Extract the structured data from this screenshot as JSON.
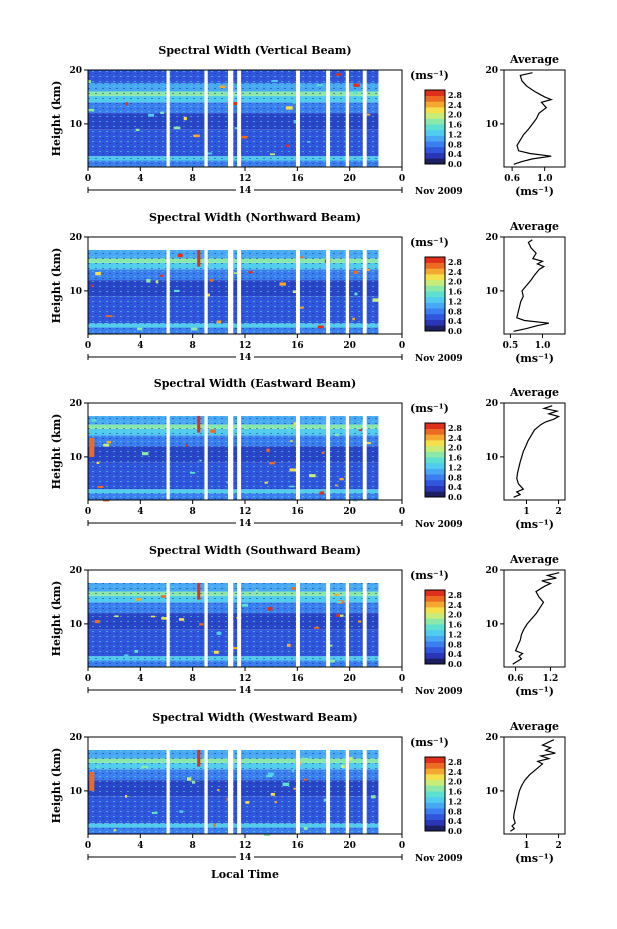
{
  "xlabel": "Local Time",
  "date_label": "Nov 2009",
  "day_label": "14",
  "colorbar": {
    "unit": "(ms⁻¹)",
    "ticks": [
      "0.0",
      "0.4",
      "0.8",
      "1.2",
      "1.6",
      "2.0",
      "2.4",
      "2.8"
    ],
    "range": [
      0.0,
      3.0
    ],
    "colors": [
      "#1c2060",
      "#2a36b8",
      "#2f56dc",
      "#3a7ef0",
      "#48a8f4",
      "#52ccee",
      "#5ee0d0",
      "#8ce8a8",
      "#c8ec78",
      "#f4e04a",
      "#f4a830",
      "#ec6a22",
      "#e0301c"
    ]
  },
  "chart_data": [
    {
      "type": "heatmap",
      "title": "Spectral Width (Vertical Beam)",
      "ylabel": "Height (km)",
      "xlim": [
        0,
        24
      ],
      "ylim": [
        2,
        20
      ],
      "xticks": [
        "0",
        "4",
        "8",
        "12",
        "16",
        "20",
        "0"
      ],
      "yticks": [
        "20",
        "10"
      ],
      "gaps": [
        [
          6.0,
          6.25
        ],
        [
          8.9,
          9.15
        ],
        [
          10.7,
          11.1
        ],
        [
          11.4,
          11.7
        ],
        [
          15.9,
          16.2
        ],
        [
          18.2,
          18.5
        ],
        [
          19.7,
          19.95
        ],
        [
          21.0,
          21.3
        ],
        [
          22.2,
          24.0
        ]
      ],
      "profile": {
        "title": "Average",
        "ylabel": "",
        "xlabel": "(ms⁻¹)",
        "xticks": [
          "0.6",
          "1.0"
        ],
        "xlim": [
          0.5,
          1.25
        ],
        "ylim": [
          2,
          20
        ],
        "yticks": [
          "20",
          "10"
        ],
        "height": [
          2.5,
          3,
          3.5,
          4,
          4.5,
          5,
          6,
          7,
          8,
          9,
          10,
          11,
          12,
          13,
          14,
          14.5,
          15,
          15.5,
          16,
          17,
          18,
          19,
          19.5
        ],
        "width": [
          0.62,
          0.72,
          0.85,
          1.08,
          0.82,
          0.68,
          0.66,
          0.7,
          0.74,
          0.8,
          0.85,
          0.9,
          0.93,
          1.02,
          0.96,
          1.08,
          1.0,
          0.94,
          0.88,
          0.78,
          0.72,
          0.7,
          0.85
        ]
      }
    },
    {
      "type": "heatmap",
      "title": "Spectral Width (Northward Beam)",
      "ylabel": "Height (km)",
      "xlim": [
        0,
        24
      ],
      "ylim": [
        2,
        20
      ],
      "xticks": [
        "0",
        "4",
        "8",
        "12",
        "16",
        "20",
        "0"
      ],
      "yticks": [
        "20",
        "10"
      ],
      "gaps": [
        [
          6.0,
          6.25
        ],
        [
          8.9,
          9.15
        ],
        [
          10.7,
          11.1
        ],
        [
          11.4,
          11.7
        ],
        [
          15.9,
          16.2
        ],
        [
          18.2,
          18.5
        ],
        [
          19.7,
          19.95
        ],
        [
          21.0,
          21.3
        ],
        [
          22.2,
          24.0
        ]
      ],
      "profile": {
        "title": "Average",
        "ylabel": "",
        "xlabel": "(ms⁻¹)",
        "xticks": [
          "0.5",
          "1.0"
        ],
        "xlim": [
          0.4,
          1.35
        ],
        "ylim": [
          2,
          20
        ],
        "yticks": [
          "20",
          "10"
        ],
        "height": [
          2.5,
          3,
          3.5,
          4,
          4.5,
          5,
          6,
          7,
          8,
          9,
          10,
          11,
          12,
          13,
          14,
          14.5,
          15,
          15.5,
          16,
          17,
          18,
          19,
          19.5
        ],
        "width": [
          0.55,
          0.75,
          0.9,
          1.1,
          0.72,
          0.6,
          0.62,
          0.64,
          0.66,
          0.7,
          0.68,
          0.75,
          0.82,
          0.88,
          0.95,
          1.02,
          0.92,
          1.0,
          0.85,
          0.9,
          0.82,
          0.78,
          0.84
        ]
      }
    },
    {
      "type": "heatmap",
      "title": "Spectral Width (Eastward Beam)",
      "ylabel": "Height (km)",
      "xlim": [
        0,
        24
      ],
      "ylim": [
        2,
        20
      ],
      "xticks": [
        "0",
        "4",
        "8",
        "12",
        "16",
        "20",
        "0"
      ],
      "yticks": [
        "20",
        "10"
      ],
      "gaps": [
        [
          6.0,
          6.25
        ],
        [
          8.9,
          9.15
        ],
        [
          10.7,
          11.1
        ],
        [
          11.4,
          11.7
        ],
        [
          15.9,
          16.2
        ],
        [
          18.2,
          18.5
        ],
        [
          19.7,
          19.95
        ],
        [
          21.0,
          21.3
        ],
        [
          22.2,
          24.0
        ]
      ],
      "profile": {
        "title": "Average",
        "ylabel": "",
        "xlabel": "(ms⁻¹)",
        "xticks": [
          "1",
          "2"
        ],
        "xlim": [
          0.3,
          2.2
        ],
        "ylim": [
          2,
          20
        ],
        "yticks": [
          "20",
          "10"
        ],
        "height": [
          2.5,
          3,
          3.5,
          4,
          5,
          6,
          7,
          8,
          9,
          10,
          11,
          12,
          13,
          14,
          15,
          16,
          16.5,
          17,
          17.5,
          18,
          18.5,
          19,
          19.5
        ],
        "width": [
          0.6,
          0.8,
          0.7,
          0.9,
          0.75,
          0.7,
          0.72,
          0.76,
          0.8,
          0.85,
          0.9,
          0.98,
          1.05,
          1.15,
          1.25,
          1.45,
          1.6,
          1.85,
          2.0,
          1.7,
          1.95,
          1.55,
          1.8
        ]
      }
    },
    {
      "type": "heatmap",
      "title": "Spectral Width (Southward Beam)",
      "ylabel": "Height (km)",
      "xlim": [
        0,
        24
      ],
      "ylim": [
        2,
        20
      ],
      "xticks": [
        "0",
        "4",
        "8",
        "12",
        "16",
        "20",
        "0"
      ],
      "yticks": [
        "20",
        "10"
      ],
      "gaps": [
        [
          6.0,
          6.25
        ],
        [
          8.9,
          9.15
        ],
        [
          10.7,
          11.1
        ],
        [
          11.4,
          11.7
        ],
        [
          15.9,
          16.2
        ],
        [
          18.2,
          18.5
        ],
        [
          19.7,
          19.95
        ],
        [
          21.0,
          21.3
        ],
        [
          22.2,
          24.0
        ]
      ],
      "profile": {
        "title": "Average",
        "ylabel": "",
        "xlabel": "(ms⁻¹)",
        "xticks": [
          "0.6",
          "1.2"
        ],
        "xlim": [
          0.4,
          1.45
        ],
        "ylim": [
          2,
          20
        ],
        "yticks": [
          "20",
          "10"
        ],
        "height": [
          2.5,
          3,
          3.5,
          4,
          4.5,
          5,
          6,
          7,
          8,
          9,
          10,
          11,
          12,
          13,
          14,
          15,
          16,
          17,
          17.5,
          18,
          18.5,
          19,
          19.5
        ],
        "width": [
          0.55,
          0.62,
          0.7,
          0.66,
          0.72,
          0.6,
          0.64,
          0.68,
          0.7,
          0.74,
          0.8,
          0.88,
          0.96,
          1.02,
          1.08,
          1.0,
          0.95,
          1.1,
          1.2,
          1.05,
          1.3,
          1.15,
          1.35
        ]
      }
    },
    {
      "type": "heatmap",
      "title": "Spectral Width (Westward Beam)",
      "ylabel": "Height (km)",
      "xlim": [
        0,
        24
      ],
      "ylim": [
        2,
        20
      ],
      "xticks": [
        "0",
        "4",
        "8",
        "12",
        "16",
        "20",
        "0"
      ],
      "yticks": [
        "20",
        "10"
      ],
      "gaps": [
        [
          6.0,
          6.25
        ],
        [
          8.9,
          9.15
        ],
        [
          10.7,
          11.1
        ],
        [
          11.4,
          11.7
        ],
        [
          15.9,
          16.2
        ],
        [
          18.2,
          18.5
        ],
        [
          19.7,
          19.95
        ],
        [
          21.0,
          21.3
        ],
        [
          22.2,
          24.0
        ]
      ],
      "profile": {
        "title": "Average",
        "ylabel": "",
        "xlabel": "(ms⁻¹)",
        "xticks": [
          "1",
          "2"
        ],
        "xlim": [
          0.3,
          2.2
        ],
        "ylim": [
          2,
          20
        ],
        "yticks": [
          "20",
          "10"
        ],
        "height": [
          2.5,
          3,
          3.5,
          4,
          5,
          6,
          7,
          8,
          9,
          10,
          11,
          12,
          13,
          14,
          15,
          15.5,
          16,
          16.5,
          17,
          17.5,
          18,
          18.5,
          19.5
        ],
        "width": [
          0.5,
          0.62,
          0.55,
          0.65,
          0.6,
          0.62,
          0.66,
          0.7,
          0.74,
          0.78,
          0.85,
          0.95,
          1.1,
          1.3,
          1.5,
          1.35,
          1.7,
          1.45,
          1.9,
          1.6,
          1.75,
          1.5,
          1.85
        ]
      }
    }
  ]
}
